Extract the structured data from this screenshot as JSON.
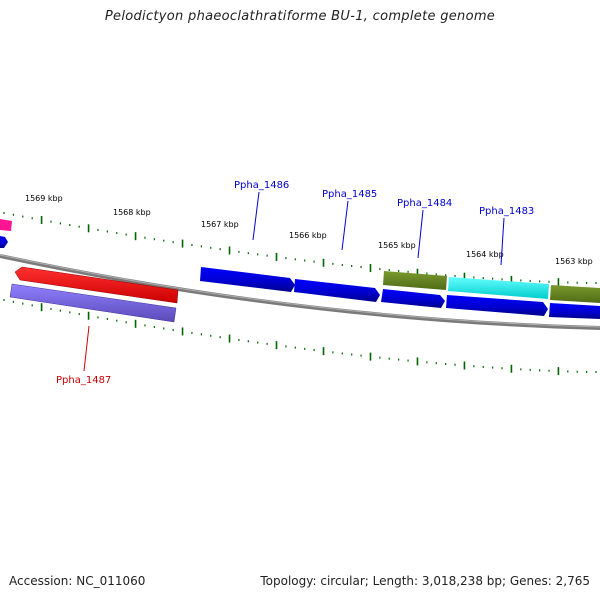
{
  "title": "Pelodictyon phaeoclathratiforme BU-1, complete genome",
  "footer": {
    "accession": "Accession: NC_011060",
    "topology": "Topology: circular; Length: 3,018,238 bp; Genes: 2,765"
  },
  "scale_labels": [
    "1569 kbp",
    "1568 kbp",
    "1567 kbp",
    "1566 kbp",
    "1565 kbp",
    "1564 kbp",
    "1563 kbp"
  ],
  "gene_labels": [
    {
      "text": "Ppha_1486",
      "color": "#0000cc"
    },
    {
      "text": "Ppha_1485",
      "color": "#0000cc"
    },
    {
      "text": "Ppha_1484",
      "color": "#0000cc"
    },
    {
      "text": "Ppha_1483",
      "color": "#0000cc"
    },
    {
      "text": "Ppha_1487",
      "color": "#cc0000"
    }
  ],
  "colors": {
    "forward_gene": "#0000ee",
    "reverse_gene": "#ff0000",
    "cds_lavender": "#7b68ee",
    "olive": "#6b8e23",
    "cyan": "#00ffff",
    "magenta": "#ff1493",
    "backbone": "#808080",
    "ticks": "#006400"
  }
}
